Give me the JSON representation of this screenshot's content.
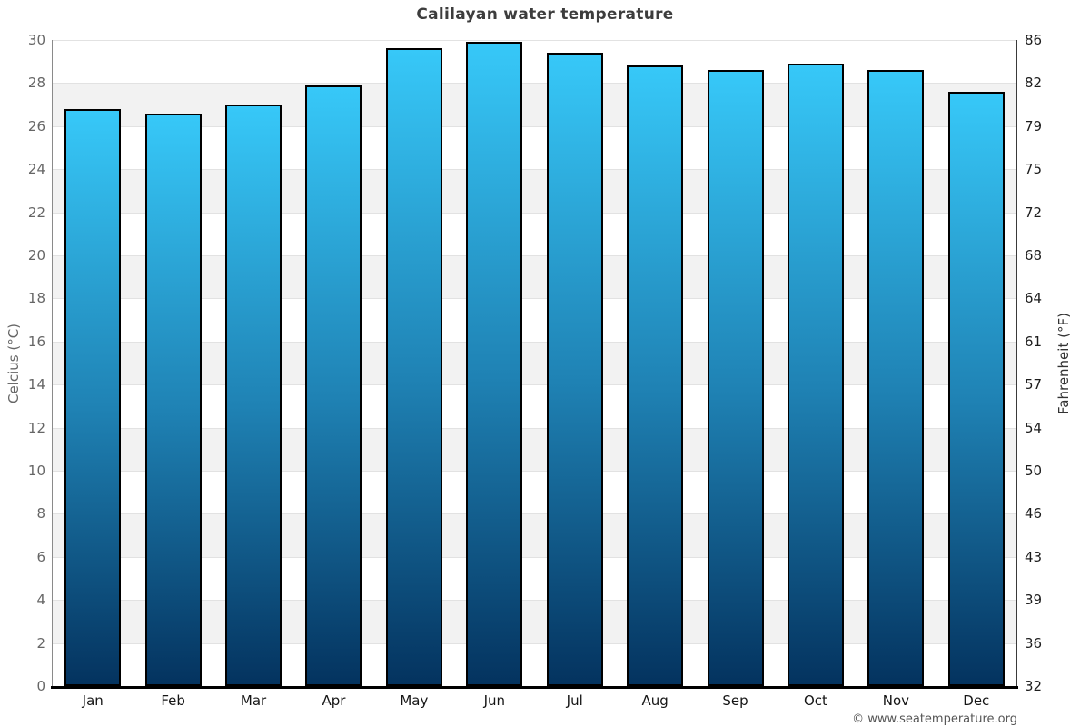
{
  "title": "Calilayan water temperature",
  "footer": "© www.seatemperature.org",
  "axes": {
    "left_title": "Celcius (°C)",
    "right_title": "Fahrenheit (°F)"
  },
  "chart_data": {
    "type": "bar",
    "title": "Calilayan water temperature",
    "categories": [
      "Jan",
      "Feb",
      "Mar",
      "Apr",
      "May",
      "Jun",
      "Jul",
      "Aug",
      "Sep",
      "Oct",
      "Nov",
      "Dec"
    ],
    "series": [
      {
        "name": "Water temperature",
        "unit": "°C",
        "values": [
          26.8,
          26.6,
          27.0,
          27.9,
          29.6,
          29.9,
          29.4,
          28.8,
          28.6,
          28.9,
          28.6,
          27.6
        ]
      }
    ],
    "xlabel": "",
    "ylabel_left": "Celcius (°C)",
    "ylabel_right": "Fahrenheit (°F)",
    "ylim_celsius": [
      0,
      30
    ],
    "yticks_celsius": [
      30,
      28,
      26,
      24,
      22,
      20,
      18,
      16,
      14,
      12,
      10,
      8,
      6,
      4,
      2,
      0
    ],
    "yticks_fahrenheit": [
      86,
      82,
      79,
      75,
      72,
      68,
      64,
      61,
      57,
      54,
      50,
      46,
      43,
      39,
      36,
      32
    ],
    "grid": "horizontal bands every 2°C, alternating white/gray",
    "legend": "none",
    "colors": {
      "bar_gradient_top": "#37c8f8",
      "bar_gradient_mid": "#1f82b4",
      "bar_gradient_bottom": "#04335f",
      "bar_border": "#000000",
      "band_shade": "#f2f2f2",
      "band_light": "#ffffff",
      "gridline": "#e2e2e2",
      "title_text": "#3d3d3d",
      "left_tick_text": "#666666",
      "right_tick_text": "#1d1d1d",
      "baseline": "#000000"
    }
  }
}
